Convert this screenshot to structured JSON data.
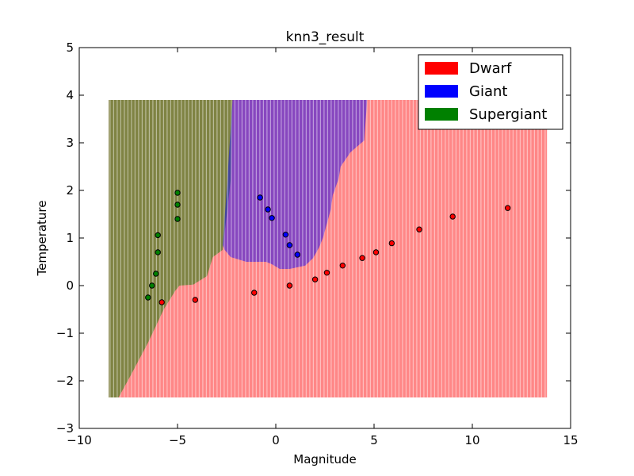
{
  "chart_data": {
    "type": "scatter",
    "title": "knn3_result",
    "xlabel": "Magnitude",
    "ylabel": "Temperature",
    "xlim": [
      -10,
      15
    ],
    "ylim": [
      -3,
      5
    ],
    "xticks": [
      -10,
      -5,
      0,
      5,
      10,
      15
    ],
    "yticks": [
      -3,
      -2,
      -1,
      0,
      1,
      2,
      3,
      4,
      5
    ],
    "xtick_labels": [
      "−10",
      "−5",
      "0",
      "5",
      "10",
      "15"
    ],
    "ytick_labels": [
      "−3",
      "−2",
      "−1",
      "0",
      "1",
      "2",
      "3",
      "4",
      "5"
    ],
    "grid": false,
    "legend_placement": "top-right",
    "legend": [
      {
        "label": "Dwarf",
        "color": "#ff0000"
      },
      {
        "label": "Giant",
        "color": "#0000ff"
      },
      {
        "label": "Supergiant",
        "color": "#008000"
      }
    ],
    "region_bounds": {
      "x": [
        -8.5,
        13.8
      ],
      "y": [
        -2.35,
        3.9
      ]
    },
    "regions": [
      {
        "class": "Dwarf",
        "color": "#ff0000",
        "opacity": 0.47,
        "polygon": [
          [
            -8.5,
            -2.35
          ],
          [
            13.8,
            -2.35
          ],
          [
            13.8,
            3.9
          ],
          [
            -8.5,
            3.9
          ]
        ]
      },
      {
        "class": "Supergiant",
        "color": "#008000",
        "opacity": 0.5,
        "polygon": [
          [
            -8.5,
            3.9
          ],
          [
            -2.2,
            3.9
          ],
          [
            -2.3,
            2.2
          ],
          [
            -2.7,
            0.75
          ],
          [
            -3.2,
            0.6
          ],
          [
            -3.5,
            0.2
          ],
          [
            -4.2,
            0.02
          ],
          [
            -4.9,
            0.0
          ],
          [
            -5.1,
            -0.1
          ],
          [
            -5.7,
            -0.5
          ],
          [
            -6.5,
            -1.2
          ],
          [
            -7.4,
            -1.9
          ],
          [
            -8.0,
            -2.35
          ],
          [
            -8.5,
            -2.35
          ]
        ]
      },
      {
        "class": "Giant",
        "color": "#0000ff",
        "opacity": 0.47,
        "polygon": [
          [
            -2.2,
            3.9
          ],
          [
            4.65,
            3.9
          ],
          [
            4.5,
            3.05
          ],
          [
            3.8,
            2.8
          ],
          [
            3.3,
            2.5
          ],
          [
            3.2,
            2.25
          ],
          [
            2.9,
            1.9
          ],
          [
            2.8,
            1.6
          ],
          [
            2.4,
            1.0
          ],
          [
            2.2,
            0.8
          ],
          [
            1.9,
            0.58
          ],
          [
            1.5,
            0.42
          ],
          [
            0.7,
            0.35
          ],
          [
            0.2,
            0.35
          ],
          [
            -0.2,
            0.45
          ],
          [
            -0.5,
            0.5
          ],
          [
            -1.5,
            0.5
          ],
          [
            -2.3,
            0.6
          ],
          [
            -2.6,
            0.75
          ],
          [
            -2.7,
            0.85
          ],
          [
            -2.5,
            2.0
          ]
        ]
      }
    ],
    "series": [
      {
        "name": "Dwarf",
        "color": "#ff0000",
        "points": [
          [
            -5.8,
            -0.35
          ],
          [
            -4.1,
            -0.3
          ],
          [
            -1.1,
            -0.15
          ],
          [
            0.7,
            0.0
          ],
          [
            2.0,
            0.13
          ],
          [
            2.6,
            0.27
          ],
          [
            3.4,
            0.42
          ],
          [
            4.4,
            0.58
          ],
          [
            5.1,
            0.7
          ],
          [
            5.9,
            0.89
          ],
          [
            7.3,
            1.18
          ],
          [
            9.0,
            1.45
          ],
          [
            11.8,
            1.63
          ]
        ]
      },
      {
        "name": "Giant",
        "color": "#0000ff",
        "points": [
          [
            -0.8,
            1.85
          ],
          [
            -0.4,
            1.6
          ],
          [
            -0.2,
            1.42
          ],
          [
            0.5,
            1.07
          ],
          [
            0.7,
            0.85
          ],
          [
            1.1,
            0.65
          ]
        ]
      },
      {
        "name": "Supergiant",
        "color": "#008000",
        "points": [
          [
            -5.0,
            1.95
          ],
          [
            -5.0,
            1.7
          ],
          [
            -5.0,
            1.4
          ],
          [
            -6.0,
            1.06
          ],
          [
            -6.0,
            0.7
          ],
          [
            -6.1,
            0.25
          ],
          [
            -6.3,
            0.0
          ],
          [
            -6.5,
            -0.25
          ]
        ]
      }
    ]
  }
}
